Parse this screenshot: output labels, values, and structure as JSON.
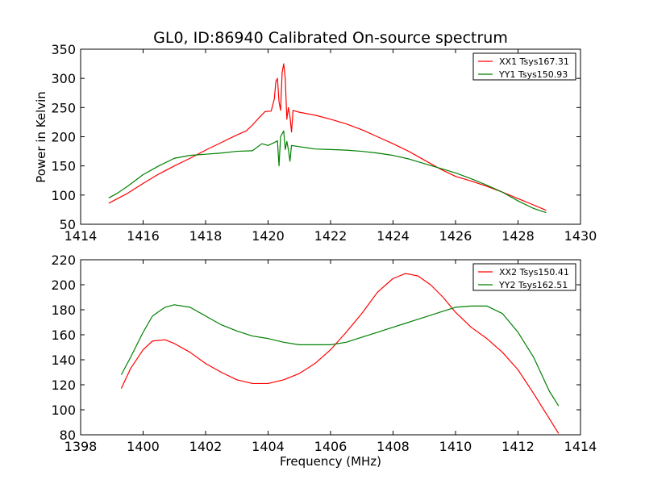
{
  "figure": {
    "title": "GL0, ID:86940 Calibrated On-source spectrum",
    "xlabel": "Frequency (MHz)",
    "ylabel": "Power in Kelvin"
  },
  "chart_data": [
    {
      "type": "line",
      "title": "GL0, ID:86940 Calibrated On-source spectrum",
      "xlabel": "",
      "ylabel": "Power in Kelvin",
      "xlim": [
        1414,
        1430
      ],
      "ylim": [
        50,
        350
      ],
      "xticks": [
        1414,
        1416,
        1418,
        1420,
        1422,
        1424,
        1426,
        1428,
        1430
      ],
      "yticks": [
        50,
        100,
        150,
        200,
        250,
        300,
        350
      ],
      "grid": false,
      "legend_position": "top-right",
      "series": [
        {
          "name": "XX1 Tsys167.31",
          "color": "#ff0000",
          "points": [
            [
              1414.9,
              86
            ],
            [
              1415.5,
              103
            ],
            [
              1416,
              120
            ],
            [
              1416.5,
              136
            ],
            [
              1417,
              150
            ],
            [
              1417.5,
              163
            ],
            [
              1418,
              177
            ],
            [
              1418.5,
              190
            ],
            [
              1419,
              203
            ],
            [
              1419.3,
              210
            ],
            [
              1419.5,
              220
            ],
            [
              1419.7,
              232
            ],
            [
              1419.9,
              243
            ],
            [
              1420.1,
              244
            ],
            [
              1420.2,
              265
            ],
            [
              1420.25,
              295
            ],
            [
              1420.3,
              300
            ],
            [
              1420.35,
              260
            ],
            [
              1420.4,
              245
            ],
            [
              1420.45,
              310
            ],
            [
              1420.5,
              325
            ],
            [
              1420.55,
              300
            ],
            [
              1420.6,
              230
            ],
            [
              1420.65,
              250
            ],
            [
              1420.7,
              235
            ],
            [
              1420.75,
              208
            ],
            [
              1420.8,
              245
            ],
            [
              1421,
              242
            ],
            [
              1421.5,
              237
            ],
            [
              1422,
              230
            ],
            [
              1422.5,
              222
            ],
            [
              1423,
              212
            ],
            [
              1423.5,
              200
            ],
            [
              1424,
              188
            ],
            [
              1424.5,
              175
            ],
            [
              1425,
              160
            ],
            [
              1425.5,
              145
            ],
            [
              1426,
              132
            ],
            [
              1426.5,
              124
            ],
            [
              1427,
              115
            ],
            [
              1427.5,
              105
            ],
            [
              1428,
              94
            ],
            [
              1428.5,
              83
            ],
            [
              1428.9,
              74
            ]
          ]
        },
        {
          "name": "YY1 Tsys150.93",
          "color": "#008000",
          "points": [
            [
              1414.9,
              95
            ],
            [
              1415.2,
              104
            ],
            [
              1415.5,
              115
            ],
            [
              1416,
              135
            ],
            [
              1416.5,
              150
            ],
            [
              1417,
              163
            ],
            [
              1417.5,
              168
            ],
            [
              1418,
              170
            ],
            [
              1418.5,
              172
            ],
            [
              1419,
              175
            ],
            [
              1419.5,
              176
            ],
            [
              1419.8,
              188
            ],
            [
              1420,
              185
            ],
            [
              1420.2,
              190
            ],
            [
              1420.3,
              193
            ],
            [
              1420.35,
              150
            ],
            [
              1420.4,
              200
            ],
            [
              1420.45,
              205
            ],
            [
              1420.5,
              210
            ],
            [
              1420.55,
              178
            ],
            [
              1420.6,
              192
            ],
            [
              1420.65,
              178
            ],
            [
              1420.7,
              158
            ],
            [
              1420.75,
              185
            ],
            [
              1421,
              183
            ],
            [
              1421.5,
              179
            ],
            [
              1422,
              178
            ],
            [
              1422.5,
              177
            ],
            [
              1423,
              175
            ],
            [
              1423.5,
              172
            ],
            [
              1424,
              168
            ],
            [
              1424.5,
              162
            ],
            [
              1425,
              154
            ],
            [
              1425.5,
              146
            ],
            [
              1426,
              138
            ],
            [
              1426.5,
              128
            ],
            [
              1427,
              117
            ],
            [
              1427.5,
              105
            ],
            [
              1428,
              90
            ],
            [
              1428.5,
              77
            ],
            [
              1428.9,
              70
            ]
          ]
        }
      ]
    },
    {
      "type": "line",
      "title": "",
      "xlabel": "Frequency (MHz)",
      "ylabel": "",
      "xlim": [
        1398,
        1414
      ],
      "ylim": [
        80,
        220
      ],
      "xticks": [
        1398,
        1400,
        1402,
        1404,
        1406,
        1408,
        1410,
        1412,
        1414
      ],
      "yticks": [
        80,
        100,
        120,
        140,
        160,
        180,
        200,
        220
      ],
      "grid": false,
      "legend_position": "top-right",
      "series": [
        {
          "name": "XX2 Tsys150.41",
          "color": "#ff0000",
          "points": [
            [
              1399.3,
              117
            ],
            [
              1399.6,
              133
            ],
            [
              1400,
              148
            ],
            [
              1400.3,
              155
            ],
            [
              1400.7,
              156
            ],
            [
              1401,
              153
            ],
            [
              1401.5,
              146
            ],
            [
              1402,
              137
            ],
            [
              1402.5,
              130
            ],
            [
              1403,
              124
            ],
            [
              1403.5,
              121
            ],
            [
              1404,
              121
            ],
            [
              1404.5,
              124
            ],
            [
              1405,
              129
            ],
            [
              1405.5,
              137
            ],
            [
              1406,
              148
            ],
            [
              1406.5,
              162
            ],
            [
              1407,
              177
            ],
            [
              1407.5,
              194
            ],
            [
              1408,
              205
            ],
            [
              1408.4,
              209
            ],
            [
              1408.8,
              207
            ],
            [
              1409.2,
              200
            ],
            [
              1409.6,
              190
            ],
            [
              1410,
              178
            ],
            [
              1410.5,
              166
            ],
            [
              1411,
              157
            ],
            [
              1411.5,
              146
            ],
            [
              1412,
              132
            ],
            [
              1412.5,
              113
            ],
            [
              1413,
              93
            ],
            [
              1413.3,
              81
            ]
          ]
        },
        {
          "name": "YY2 Tsys162.51",
          "color": "#008000",
          "points": [
            [
              1399.3,
              128
            ],
            [
              1399.6,
              142
            ],
            [
              1400,
              162
            ],
            [
              1400.3,
              175
            ],
            [
              1400.7,
              182
            ],
            [
              1401,
              184
            ],
            [
              1401.5,
              182
            ],
            [
              1402,
              175
            ],
            [
              1402.5,
              168
            ],
            [
              1403,
              163
            ],
            [
              1403.5,
              159
            ],
            [
              1404,
              157
            ],
            [
              1404.5,
              154
            ],
            [
              1405,
              152
            ],
            [
              1405.5,
              152
            ],
            [
              1406,
              152
            ],
            [
              1406.5,
              154
            ],
            [
              1407,
              158
            ],
            [
              1407.5,
              162
            ],
            [
              1408,
              166
            ],
            [
              1408.5,
              170
            ],
            [
              1409,
              174
            ],
            [
              1409.5,
              178
            ],
            [
              1410,
              182
            ],
            [
              1410.5,
              183
            ],
            [
              1411,
              183
            ],
            [
              1411.5,
              177
            ],
            [
              1412,
              162
            ],
            [
              1412.5,
              142
            ],
            [
              1413,
              115
            ],
            [
              1413.3,
              103
            ]
          ]
        }
      ]
    }
  ]
}
